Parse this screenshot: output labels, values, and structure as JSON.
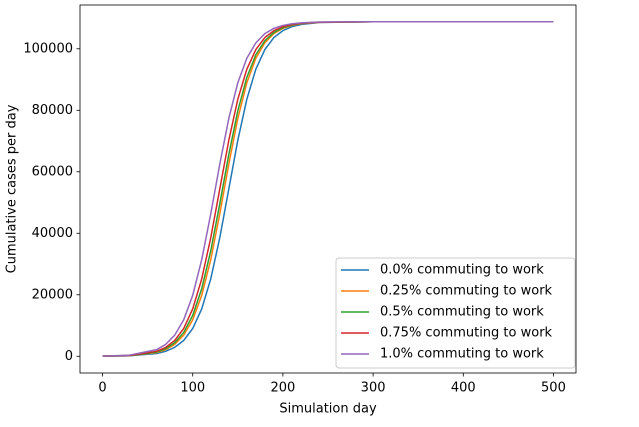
{
  "chart_data": {
    "type": "line",
    "xlabel": "Simulation day",
    "ylabel": "Cumulative cases per day",
    "x": [
      0,
      30,
      60,
      70,
      80,
      90,
      100,
      110,
      120,
      130,
      140,
      150,
      160,
      170,
      180,
      190,
      200,
      210,
      220,
      240,
      300,
      400,
      500
    ],
    "series": [
      {
        "name": "0.0% commuting to work",
        "color": "#1f77b4",
        "values": [
          24,
          150,
          890,
          1610,
          2890,
          5160,
          9050,
          15430,
          25190,
          38550,
          54400,
          70250,
          83610,
          93370,
          99750,
          103640,
          105910,
          107190,
          107910,
          108530,
          108800,
          108800,
          108800
        ]
      },
      {
        "name": "0.25% commuting to work",
        "color": "#ff7f0e",
        "values": [
          33,
          200,
          1200,
          2160,
          3870,
          6850,
          11870,
          19850,
          31450,
          46300,
          62500,
          77350,
          88950,
          96930,
          101950,
          104930,
          106640,
          107600,
          108140,
          108600,
          108800,
          108800,
          108800
        ]
      },
      {
        "name": "0.5% commuting to work",
        "color": "#2ca02c",
        "values": [
          38,
          228,
          1364,
          2452,
          4386,
          7730,
          13290,
          21990,
          34290,
          49540,
          65600,
          79850,
          90720,
          98060,
          102630,
          105320,
          106860,
          107720,
          108210,
          108620,
          108800,
          108800,
          108800
        ]
      },
      {
        "name": "0.75% commuting to work",
        "color": "#d62728",
        "values": [
          45,
          270,
          1610,
          2890,
          5160,
          9050,
          15430,
          25190,
          38550,
          54400,
          70250,
          83610,
          93370,
          99750,
          103640,
          105910,
          107190,
          107910,
          108310,
          108650,
          108800,
          108800,
          108800
        ]
      },
      {
        "name": "1.0% commuting to work",
        "color": "#9467bd",
        "values": [
          60,
          360,
          2160,
          3870,
          6850,
          11870,
          19850,
          31450,
          46300,
          62500,
          77350,
          88950,
          96930,
          101950,
          104930,
          106640,
          107600,
          108140,
          108440,
          108700,
          108800,
          108800,
          108800
        ]
      }
    ],
    "xlim": [
      -25,
      525
    ],
    "xticks": [
      0,
      100,
      200,
      300,
      400,
      500
    ],
    "ylim": [
      -5440,
      114240
    ],
    "yticks": [
      0,
      20000,
      40000,
      60000,
      80000,
      100000
    ],
    "grid": false,
    "legend": "lower right"
  }
}
